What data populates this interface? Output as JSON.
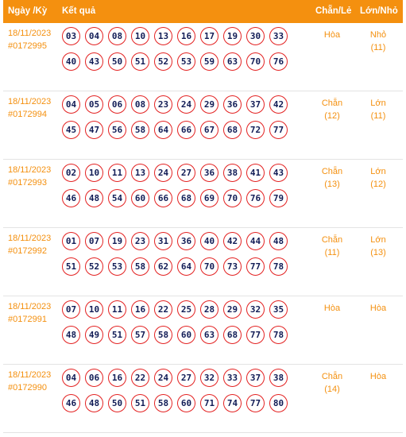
{
  "header": {
    "date_label": "Ngày /Kỳ",
    "result_label": "Kết quả",
    "chanle_label": "Chẵn/Lẻ",
    "lonnho_label": "Lớn/Nhỏ"
  },
  "rows": [
    {
      "date": "18/11/2023",
      "draw": "#0172995",
      "balls": [
        "03",
        "04",
        "08",
        "10",
        "13",
        "16",
        "17",
        "19",
        "30",
        "33",
        "40",
        "43",
        "50",
        "51",
        "52",
        "53",
        "59",
        "63",
        "70",
        "76"
      ],
      "chanle": "Hòa",
      "chanle_count": "",
      "lonnho": "Nhỏ",
      "lonnho_count": "(11)"
    },
    {
      "date": "18/11/2023",
      "draw": "#0172994",
      "balls": [
        "04",
        "05",
        "06",
        "08",
        "23",
        "24",
        "29",
        "36",
        "37",
        "42",
        "45",
        "47",
        "56",
        "58",
        "64",
        "66",
        "67",
        "68",
        "72",
        "77"
      ],
      "chanle": "Chẵn",
      "chanle_count": "(12)",
      "lonnho": "Lớn",
      "lonnho_count": "(11)"
    },
    {
      "date": "18/11/2023",
      "draw": "#0172993",
      "balls": [
        "02",
        "10",
        "11",
        "13",
        "24",
        "27",
        "36",
        "38",
        "41",
        "43",
        "46",
        "48",
        "54",
        "60",
        "66",
        "68",
        "69",
        "70",
        "76",
        "79"
      ],
      "chanle": "Chẵn",
      "chanle_count": "(13)",
      "lonnho": "Lớn",
      "lonnho_count": "(12)"
    },
    {
      "date": "18/11/2023",
      "draw": "#0172992",
      "balls": [
        "01",
        "07",
        "19",
        "23",
        "31",
        "36",
        "40",
        "42",
        "44",
        "48",
        "51",
        "52",
        "53",
        "58",
        "62",
        "64",
        "70",
        "73",
        "77",
        "78"
      ],
      "chanle": "Chẵn",
      "chanle_count": "(11)",
      "lonnho": "Lớn",
      "lonnho_count": "(13)"
    },
    {
      "date": "18/11/2023",
      "draw": "#0172991",
      "balls": [
        "07",
        "10",
        "11",
        "16",
        "22",
        "25",
        "28",
        "29",
        "32",
        "35",
        "48",
        "49",
        "51",
        "57",
        "58",
        "60",
        "63",
        "68",
        "77",
        "78"
      ],
      "chanle": "Hòa",
      "chanle_count": "",
      "lonnho": "Hòa",
      "lonnho_count": ""
    },
    {
      "date": "18/11/2023",
      "draw": "#0172990",
      "balls": [
        "04",
        "06",
        "16",
        "22",
        "24",
        "27",
        "32",
        "33",
        "37",
        "38",
        "46",
        "48",
        "50",
        "51",
        "58",
        "60",
        "71",
        "74",
        "77",
        "80"
      ],
      "chanle": "Chẵn",
      "chanle_count": "(14)",
      "lonnho": "Hòa",
      "lonnho_count": ""
    }
  ]
}
